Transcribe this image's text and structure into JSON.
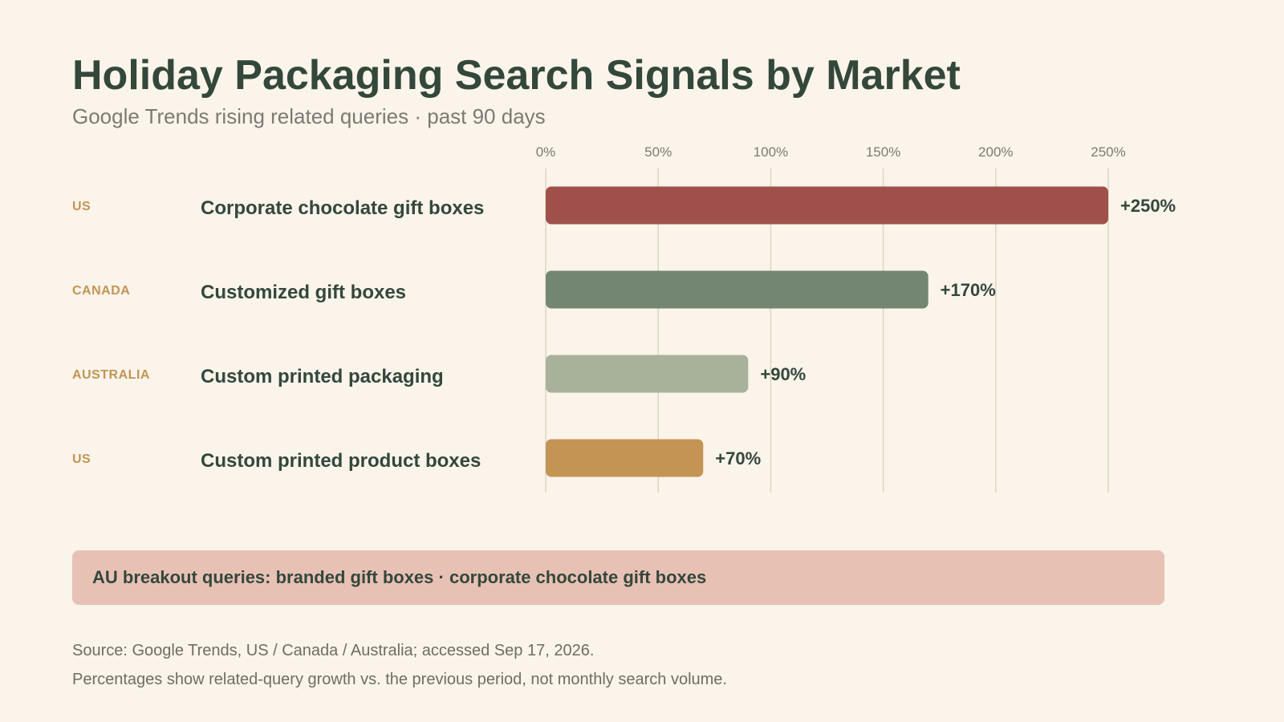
{
  "header": {
    "title": "Holiday Packaging Search Signals by Market",
    "subtitle": "Google Trends rising related queries · past 90 days"
  },
  "chart_data": {
    "type": "bar",
    "orientation": "horizontal",
    "categories": [
      "Corporate chocolate gift boxes",
      "Customized gift boxes",
      "Custom printed packaging",
      "Custom printed product boxes"
    ],
    "markets": [
      "US",
      "CANADA",
      "AUSTRALIA",
      "US"
    ],
    "values": [
      250,
      170,
      90,
      70
    ],
    "value_labels": [
      "+250%",
      "+170%",
      "+90%",
      "+70%"
    ],
    "bar_colors": [
      "#a0504b",
      "#738672",
      "#a8b29a",
      "#c49455"
    ],
    "xlim": [
      0,
      250
    ],
    "x_ticks": [
      0,
      50,
      100,
      150,
      200,
      250
    ],
    "x_tick_labels": [
      "0%",
      "50%",
      "100%",
      "150%",
      "200%",
      "250%"
    ],
    "grid": true,
    "axis_position": "top"
  },
  "callout": {
    "text": "AU breakout queries: branded gift boxes · corporate chocolate gift boxes"
  },
  "footer": {
    "source": "Source: Google Trends, US / Canada / Australia; accessed Sep 17, 2026.",
    "note": "Percentages show related-query growth vs. the previous period, not monthly search volume."
  },
  "colors": {
    "background": "#faf4ea",
    "text_primary": "#34473b",
    "market_label": "#c49455",
    "callout_bg": "#e8c1b5",
    "gridline": "#ddd4c4"
  }
}
